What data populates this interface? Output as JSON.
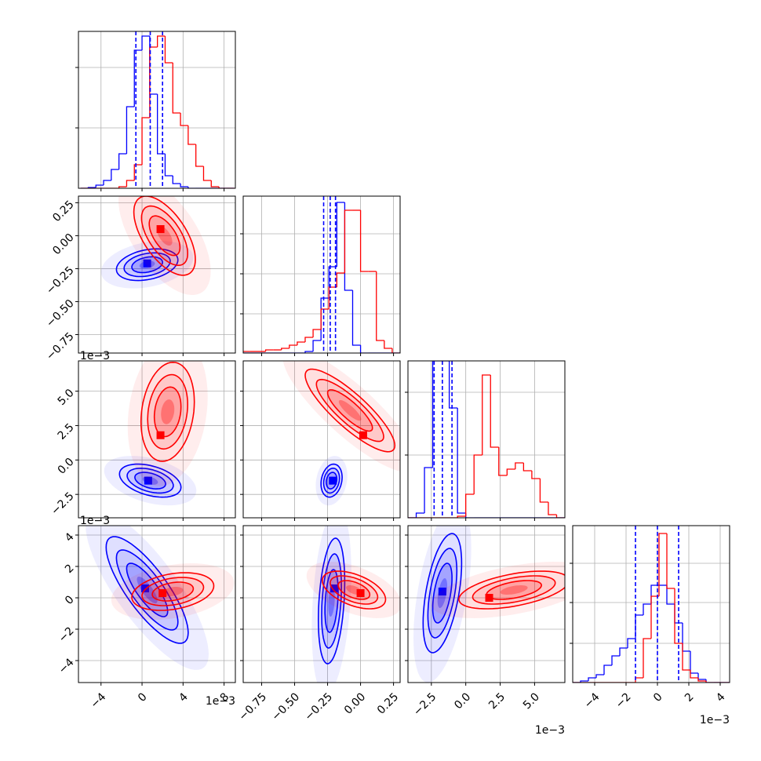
{
  "chart_data": {
    "type": "corner",
    "params": [
      {
        "lim": [
          -6.2,
          9.1
        ],
        "ticks": [
          {
            "value": -4,
            "label": "−4"
          },
          0,
          4,
          8
        ],
        "offset_label": "1e−3"
      },
      {
        "lim": [
          -0.89,
          0.3
        ],
        "ticks": [
          {
            "value": -0.75,
            "label": "−0.75"
          },
          {
            "value": -0.5,
            "label": "−0.50"
          },
          {
            "value": -0.25,
            "label": "−0.25"
          },
          {
            "value": 0,
            "label": "0.00"
          },
          0.25
        ]
      },
      {
        "lim": [
          -4.2,
          7.2
        ],
        "ticks": [
          {
            "value": -2.5,
            "label": "−2.5"
          },
          {
            "value": 0,
            "label": "0.0"
          },
          2.5,
          {
            "value": 5,
            "label": "5.0"
          }
        ],
        "offset_label": "1e−3"
      },
      {
        "lim": [
          -5.4,
          4.6
        ],
        "ticks": [
          {
            "value": -4,
            "label": "−4"
          },
          {
            "value": -2,
            "label": "−2"
          },
          0,
          2,
          4
        ],
        "offset_label": "1e−3"
      }
    ],
    "quantile_color": "#0000ff",
    "diagonal": [
      {
        "bins": [
          -6,
          -5.25,
          -4.5,
          -3.75,
          -3,
          -2.25,
          -1.5,
          -0.75,
          0,
          0.75,
          1.5,
          2.25,
          3,
          3.75,
          4.5,
          5.25,
          6,
          6.75,
          7.5,
          8.25,
          9
        ],
        "series": [
          {
            "color": "#0000ff",
            "values": [
              0,
              0.5,
              2,
              5,
              12,
              22,
              52,
              88,
              97,
              60,
              22,
              8,
              3,
              1,
              0,
              0,
              0,
              0,
              0,
              0
            ]
          },
          {
            "color": "#ff0000",
            "values": [
              0,
              0,
              0,
              0,
              0,
              1,
              5,
              15,
              45,
              90,
              97,
              80,
              48,
              40,
              28,
              14,
              5,
              1,
              0,
              0
            ]
          }
        ],
        "ylim": [
          0,
          100
        ],
        "yticks": [
          38.5,
          77
        ],
        "quantiles": [
          -0.6,
          0.8,
          2.0
        ]
      },
      {
        "bins": [
          -0.9,
          -0.84,
          -0.78,
          -0.72,
          -0.66,
          -0.6,
          -0.54,
          -0.48,
          -0.42,
          -0.36,
          -0.3,
          -0.24,
          -0.18,
          -0.12,
          -0.06,
          0,
          0.06,
          0.12,
          0.18,
          0.24,
          0.3
        ],
        "series": [
          {
            "color": "#0000ff",
            "values": [
              0,
              0,
              0,
              0,
              0,
              0,
              0,
              0,
              1,
              8,
              35,
              55,
              96,
              40,
              5,
              0,
              0,
              0,
              0,
              0
            ]
          },
          {
            "color": "#ff0000",
            "values": [
              1,
              1,
              1,
              2,
              2,
              3,
              5,
              7,
              10,
              15,
              28,
              42,
              51,
              91,
              91,
              52,
              52,
              8,
              3,
              0
            ]
          }
        ],
        "ylim": [
          0,
          100
        ],
        "yticks": [
          25,
          50.5,
          76
        ],
        "quantiles": [
          -0.28,
          -0.23,
          -0.19
        ]
      },
      {
        "bins": [
          -4.2,
          -3.6,
          -3,
          -2.4,
          -1.8,
          -1.2,
          -0.6,
          0,
          0.6,
          1.2,
          1.8,
          2.4,
          3,
          3.6,
          4.2,
          4.8,
          5.4,
          6,
          6.6,
          7.2
        ],
        "series": [
          {
            "color": "#0000ff",
            "values": [
              0,
              3,
              32,
              100,
              100,
              70,
              3,
              0,
              0,
              0,
              0,
              0,
              0,
              0,
              0,
              0,
              0,
              0,
              0
            ]
          },
          {
            "color": "#ff0000",
            "values": [
              0,
              0,
              0,
              0,
              0,
              0,
              1,
              15,
              40,
              91,
              45,
              27,
              31,
              35,
              30,
              25,
              10,
              2,
              0
            ]
          }
        ],
        "ylim": [
          0,
          100
        ],
        "yticks": [
          40,
          80
        ],
        "quantiles": [
          -2.3,
          -1.7,
          -1.0
        ]
      },
      {
        "bins": [
          -5.4,
          -4.9,
          -4.4,
          -3.9,
          -3.4,
          -2.9,
          -2.4,
          -1.9,
          -1.4,
          -0.9,
          -0.4,
          0.1,
          0.6,
          1.1,
          1.6,
          2.1,
          2.6,
          3.1,
          3.6,
          4.1,
          4.6
        ],
        "series": [
          {
            "color": "#0000ff",
            "values": [
              0,
              1,
              3,
              5,
              11,
              17,
              22,
              28,
              43,
              50,
              62,
              62,
              50,
              38,
              20,
              6,
              2,
              0,
              0,
              0
            ]
          },
          {
            "color": "#ff0000",
            "values": [
              0,
              0,
              0,
              0,
              0,
              0,
              0,
              0,
              3,
              28,
              55,
              95,
              60,
              25,
              8,
              3,
              1,
              0,
              0,
              0
            ]
          }
        ],
        "ylim": [
          0,
          100
        ],
        "yticks": [
          25,
          51,
          76
        ],
        "quantiles": [
          -1.4,
          0.0,
          1.35
        ]
      }
    ],
    "pairs": [
      {
        "x": 0,
        "y": 1,
        "series": [
          {
            "color": "#0000ff",
            "center": [
              0.5,
              -0.22
            ],
            "spread": [
              1.5,
              0.06
            ],
            "rho": 0.3,
            "peak": [
              0.5,
              -0.21
            ]
          },
          {
            "color": "#ff0000",
            "center": [
              2.2,
              0.0
            ],
            "spread": [
              1.5,
              0.15
            ],
            "rho": -0.6,
            "peak": [
              1.8,
              0.05
            ]
          }
        ]
      },
      {
        "x": 0,
        "y": 2,
        "series": [
          {
            "color": "#0000ff",
            "center": [
              0.8,
              -1.5
            ],
            "spread": [
              1.5,
              0.6
            ],
            "rho": -0.4,
            "peak": [
              0.6,
              -1.5
            ]
          },
          {
            "color": "#ff0000",
            "center": [
              2.5,
              3.5
            ],
            "spread": [
              1.3,
              1.8
            ],
            "rho": 0.2,
            "peak": [
              1.8,
              1.8
            ]
          }
        ]
      },
      {
        "x": 1,
        "y": 2,
        "series": [
          {
            "color": "#0000ff",
            "center": [
              -0.22,
              -1.5
            ],
            "spread": [
              0.04,
              0.6
            ],
            "rho": 0.2,
            "peak": [
              -0.21,
              -1.5
            ]
          },
          {
            "color": "#ff0000",
            "center": [
              -0.08,
              3.6
            ],
            "spread": [
              0.17,
              1.5
            ],
            "rho": -0.85,
            "peak": [
              0.02,
              1.8
            ]
          }
        ]
      },
      {
        "x": 0,
        "y": 3,
        "series": [
          {
            "color": "#0000ff",
            "center": [
              0.5,
              0.5
            ],
            "spread": [
              2.0,
              1.7
            ],
            "rho": -0.8,
            "peak": [
              0.3,
              0.6
            ]
          },
          {
            "color": "#ff0000",
            "center": [
              3.0,
              0.4
            ],
            "spread": [
              2.0,
              0.6
            ],
            "rho": 0.3,
            "peak": [
              2.0,
              0.3
            ]
          }
        ]
      },
      {
        "x": 1,
        "y": 3,
        "series": [
          {
            "color": "#0000ff",
            "center": [
              -0.22,
              -0.2
            ],
            "spread": [
              0.05,
              2.0
            ],
            "rho": 0.3,
            "peak": [
              -0.2,
              0.6
            ]
          },
          {
            "color": "#ff0000",
            "center": [
              -0.05,
              0.5
            ],
            "spread": [
              0.12,
              0.6
            ],
            "rho": -0.5,
            "peak": [
              0.0,
              0.3
            ]
          }
        ]
      },
      {
        "x": 2,
        "y": 3,
        "series": [
          {
            "color": "#0000ff",
            "center": [
              -1.7,
              0.3
            ],
            "spread": [
              0.7,
              1.9
            ],
            "rho": 0.5,
            "peak": [
              -1.7,
              0.4
            ]
          },
          {
            "color": "#ff0000",
            "center": [
              3.5,
              0.5
            ],
            "spread": [
              2.0,
              0.6
            ],
            "rho": 0.5,
            "peak": [
              1.7,
              0.0
            ]
          }
        ]
      }
    ]
  }
}
